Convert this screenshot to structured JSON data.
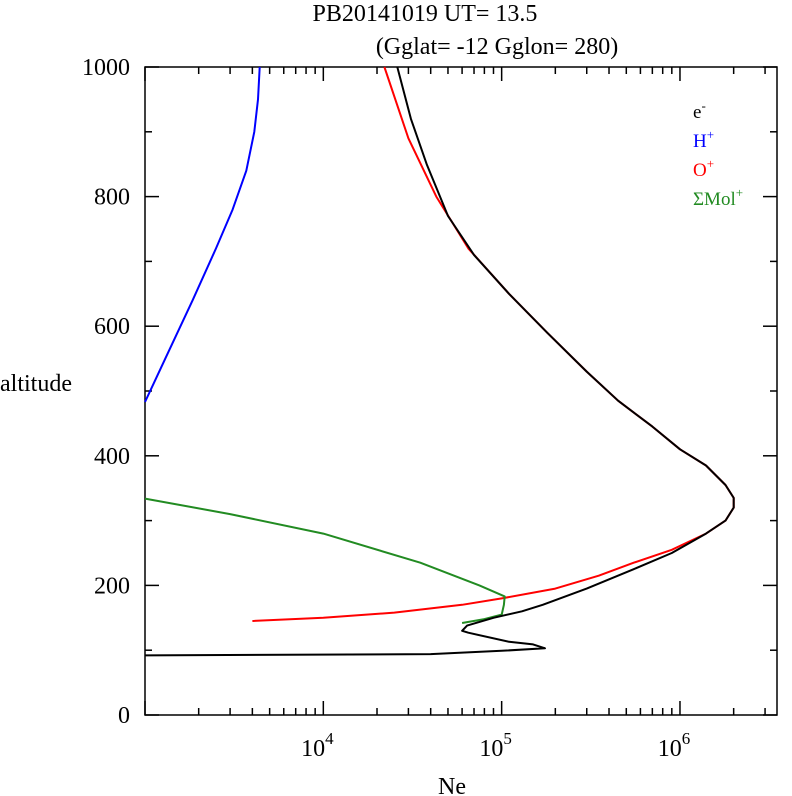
{
  "chart_data": {
    "type": "line",
    "title_line1": "PB20141019   UT=  13.5",
    "title_line2": "(Gglat= -12   Gglon=  280)",
    "xlabel": "Ne",
    "ylabel": "altitude",
    "x_scale": "log",
    "xlim": [
      1000,
      3500000
    ],
    "ylim": [
      0,
      1000
    ],
    "grid": false,
    "legend_position": "top-right",
    "y_ticks": [
      {
        "value": 0,
        "label": "0"
      },
      {
        "value": 200,
        "label": "200"
      },
      {
        "value": 400,
        "label": "400"
      },
      {
        "value": 600,
        "label": "600"
      },
      {
        "value": 800,
        "label": "800"
      },
      {
        "value": 1000,
        "label": "1000"
      }
    ],
    "x_ticks": [
      {
        "value": 10000,
        "base": "10",
        "exp": "4"
      },
      {
        "value": 100000,
        "base": "10",
        "exp": "5"
      },
      {
        "value": 1000000,
        "base": "10",
        "exp": "6"
      }
    ],
    "series": [
      {
        "name": "e-",
        "label_base": "e",
        "label_sup": "-",
        "color": "#000000",
        "points": [
          [
            1000,
            92
          ],
          [
            40000,
            94
          ],
          [
            100000,
            99
          ],
          [
            175000,
            103
          ],
          [
            150000,
            109
          ],
          [
            110000,
            113
          ],
          [
            65000,
            127
          ],
          [
            60000,
            130
          ],
          [
            64000,
            138
          ],
          [
            90000,
            150
          ],
          [
            130000,
            160
          ],
          [
            170000,
            170
          ],
          [
            300000,
            195
          ],
          [
            550000,
            225
          ],
          [
            900000,
            250
          ],
          [
            1400000,
            280
          ],
          [
            1800000,
            300
          ],
          [
            2000000,
            320
          ],
          [
            2000000,
            335
          ],
          [
            1800000,
            355
          ],
          [
            1400000,
            385
          ],
          [
            1000000,
            410
          ],
          [
            700000,
            445
          ],
          [
            450000,
            485
          ],
          [
            300000,
            530
          ],
          [
            180000,
            590
          ],
          [
            110000,
            650
          ],
          [
            70000,
            710
          ],
          [
            50000,
            770
          ],
          [
            38000,
            850
          ],
          [
            31000,
            920
          ],
          [
            26000,
            1000
          ]
        ]
      },
      {
        "name": "H+",
        "label_base": "H",
        "label_sup": "+",
        "color": "#0000ff",
        "points": [
          [
            1000,
            483
          ],
          [
            1300,
            550
          ],
          [
            1850,
            640
          ],
          [
            2500,
            720
          ],
          [
            3100,
            780
          ],
          [
            3700,
            840
          ],
          [
            4100,
            900
          ],
          [
            4300,
            950
          ],
          [
            4400,
            1000
          ]
        ]
      },
      {
        "name": "O+",
        "label_base": "O",
        "label_sup": "+",
        "color": "#ff0000",
        "points": [
          [
            4000,
            145
          ],
          [
            10000,
            150
          ],
          [
            25000,
            158
          ],
          [
            60000,
            170
          ],
          [
            100000,
            180
          ],
          [
            200000,
            195
          ],
          [
            350000,
            215
          ],
          [
            550000,
            235
          ],
          [
            900000,
            255
          ],
          [
            1400000,
            280
          ],
          [
            1800000,
            300
          ],
          [
            2000000,
            320
          ],
          [
            2000000,
            335
          ],
          [
            1800000,
            355
          ],
          [
            1400000,
            385
          ],
          [
            1000000,
            410
          ],
          [
            700000,
            445
          ],
          [
            450000,
            485
          ],
          [
            300000,
            530
          ],
          [
            180000,
            590
          ],
          [
            110000,
            650
          ],
          [
            65000,
            720
          ],
          [
            43000,
            800
          ],
          [
            30000,
            890
          ],
          [
            22000,
            1000
          ]
        ]
      },
      {
        "name": "ΣMol+",
        "label_base": "ΣMol",
        "label_sup": "+",
        "color": "#228b22",
        "points": [
          [
            60000,
            142
          ],
          [
            80000,
            148
          ],
          [
            100000,
            155
          ],
          [
            103000,
            170
          ],
          [
            104000,
            183
          ],
          [
            75000,
            200
          ],
          [
            35000,
            235
          ],
          [
            10000,
            280
          ],
          [
            3000,
            310
          ],
          [
            1000,
            334
          ]
        ]
      }
    ]
  }
}
